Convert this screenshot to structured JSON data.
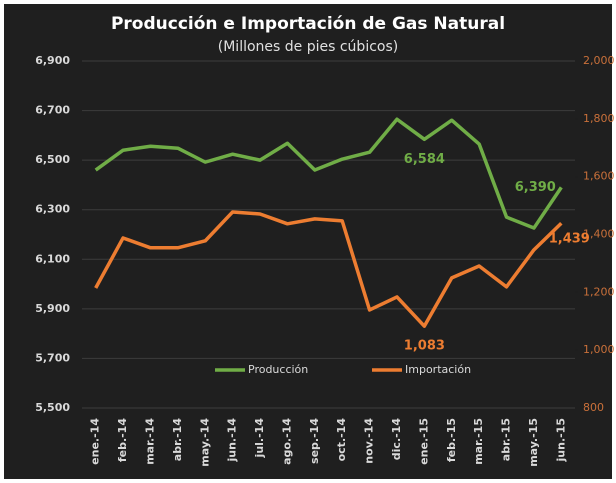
{
  "chart_data": {
    "type": "line",
    "title": "Producción e Importación de Gas Natural",
    "subtitle": "(Millones de pies cúbicos)",
    "categories": [
      "ene.-14",
      "feb.-14",
      "mar.-14",
      "abr.-14",
      "may.-14",
      "jun.-14",
      "jul.-14",
      "ago.-14",
      "sep.-14",
      "oct.-14",
      "nov.-14",
      "dic.-14",
      "ene.-15",
      "feb.-15",
      "mar.-15",
      "abr.-15",
      "may.-15",
      "jun.-15"
    ],
    "series": [
      {
        "name": "Producción",
        "color": "#70ad47",
        "axis": "y",
        "values": [
          6460,
          6540,
          6556,
          6548,
          6492,
          6524,
          6500,
          6568,
          6460,
          6504,
          6532,
          6665,
          6584,
          6661,
          6565,
          6270,
          6226,
          6390
        ],
        "value_labels": [
          null,
          null,
          null,
          null,
          null,
          null,
          null,
          null,
          null,
          null,
          null,
          null,
          "6,584",
          null,
          null,
          null,
          null,
          "6,390"
        ]
      },
      {
        "name": "Importación",
        "color": "#ed7d31",
        "axis": "y2",
        "values": [
          1215,
          1388,
          1354,
          1354,
          1378,
          1478,
          1471,
          1437,
          1454,
          1447,
          1139,
          1184,
          1083,
          1250,
          1291,
          1219,
          1347,
          1439
        ],
        "value_labels": [
          null,
          null,
          null,
          null,
          null,
          null,
          null,
          null,
          null,
          null,
          null,
          null,
          "1,083",
          null,
          null,
          null,
          null,
          "1,439"
        ]
      }
    ],
    "ylim": [
      5500,
      6900
    ],
    "yticks": [
      {
        "value": 5500,
        "label": "5,500"
      },
      {
        "value": 5700,
        "label": "5,700"
      },
      {
        "value": 5900,
        "label": "5,900"
      },
      {
        "value": 6100,
        "label": "6,100"
      },
      {
        "value": 6300,
        "label": "6,300"
      },
      {
        "value": 6500,
        "label": "6,500"
      },
      {
        "value": 6700,
        "label": "6,700"
      },
      {
        "value": 6900,
        "label": "6,900"
      }
    ],
    "y2lim": [
      800,
      2000
    ],
    "y2ticks": [
      800,
      {
        "value": 1000,
        "label": "1,000"
      },
      {
        "value": 1200,
        "label": "1,200"
      },
      {
        "value": 1400,
        "label": "1,400"
      },
      {
        "value": 1600,
        "label": "1,600"
      },
      {
        "value": 1800,
        "label": "1,800"
      },
      {
        "value": 2000,
        "label": "2,000"
      }
    ],
    "grid": true,
    "legend": "bottom"
  }
}
